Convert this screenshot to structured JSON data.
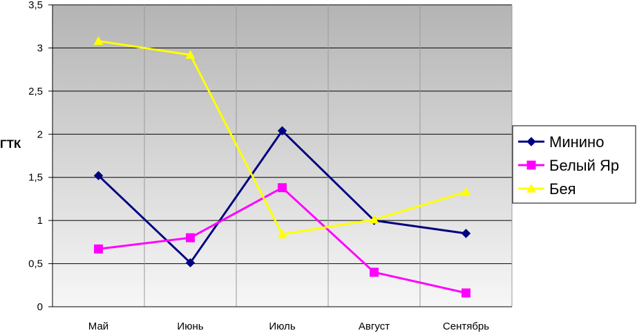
{
  "chart_data": {
    "type": "line",
    "title": "",
    "xlabel": "",
    "ylabel": "ГТК",
    "ylim": [
      0,
      3.5
    ],
    "yticks": [
      "0",
      "0,5",
      "1",
      "1,5",
      "2",
      "2,5",
      "3",
      "3,5"
    ],
    "categories": [
      "Май",
      "Июнь",
      "Июль",
      "Август",
      "Сентябрь"
    ],
    "grid": true,
    "legend_position": "right",
    "series": [
      {
        "name": "Минино",
        "values": [
          1.52,
          0.51,
          2.04,
          1.0,
          0.85
        ],
        "color": "#000080",
        "marker": "diamond"
      },
      {
        "name": "Белый Яр",
        "values": [
          0.67,
          0.8,
          1.38,
          0.4,
          0.16
        ],
        "color": "#ff00ff",
        "marker": "square"
      },
      {
        "name": "Бея",
        "values": [
          3.08,
          2.92,
          0.84,
          1.01,
          1.33
        ],
        "color": "#ffff00",
        "marker": "triangle"
      }
    ]
  }
}
